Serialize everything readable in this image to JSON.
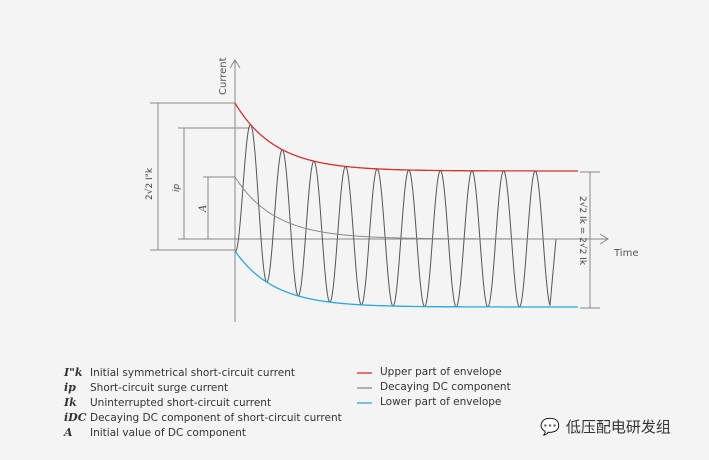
{
  "axes": {
    "y_label": "Current",
    "x_label": "Time"
  },
  "dims": {
    "peak_label": "2√2 I\"k",
    "surge_label": "ip",
    "dc_label": "A",
    "steady_label": "2√2 Ik = 2√2 Ik"
  },
  "legend_symbols": [
    {
      "sym": "I\"k",
      "text": "Initial symmetrical short-circuit current"
    },
    {
      "sym": "ip",
      "text": "Short-circuit surge current"
    },
    {
      "sym": "Ik",
      "text": "Uninterrupted short-circuit current"
    },
    {
      "sym": "iDC",
      "text": "Decaying DC component of short-circuit current"
    },
    {
      "sym": "A",
      "text": "Initial value of DC component"
    }
  ],
  "legend_lines": [
    {
      "text": "Upper part of envelope",
      "color": "#d3312c"
    },
    {
      "text": "Decaying DC component",
      "color": "#8a8a8a"
    },
    {
      "text": "Lower part of envelope",
      "color": "#2aa7dd"
    }
  ],
  "watermark": "低压配电研发组"
}
